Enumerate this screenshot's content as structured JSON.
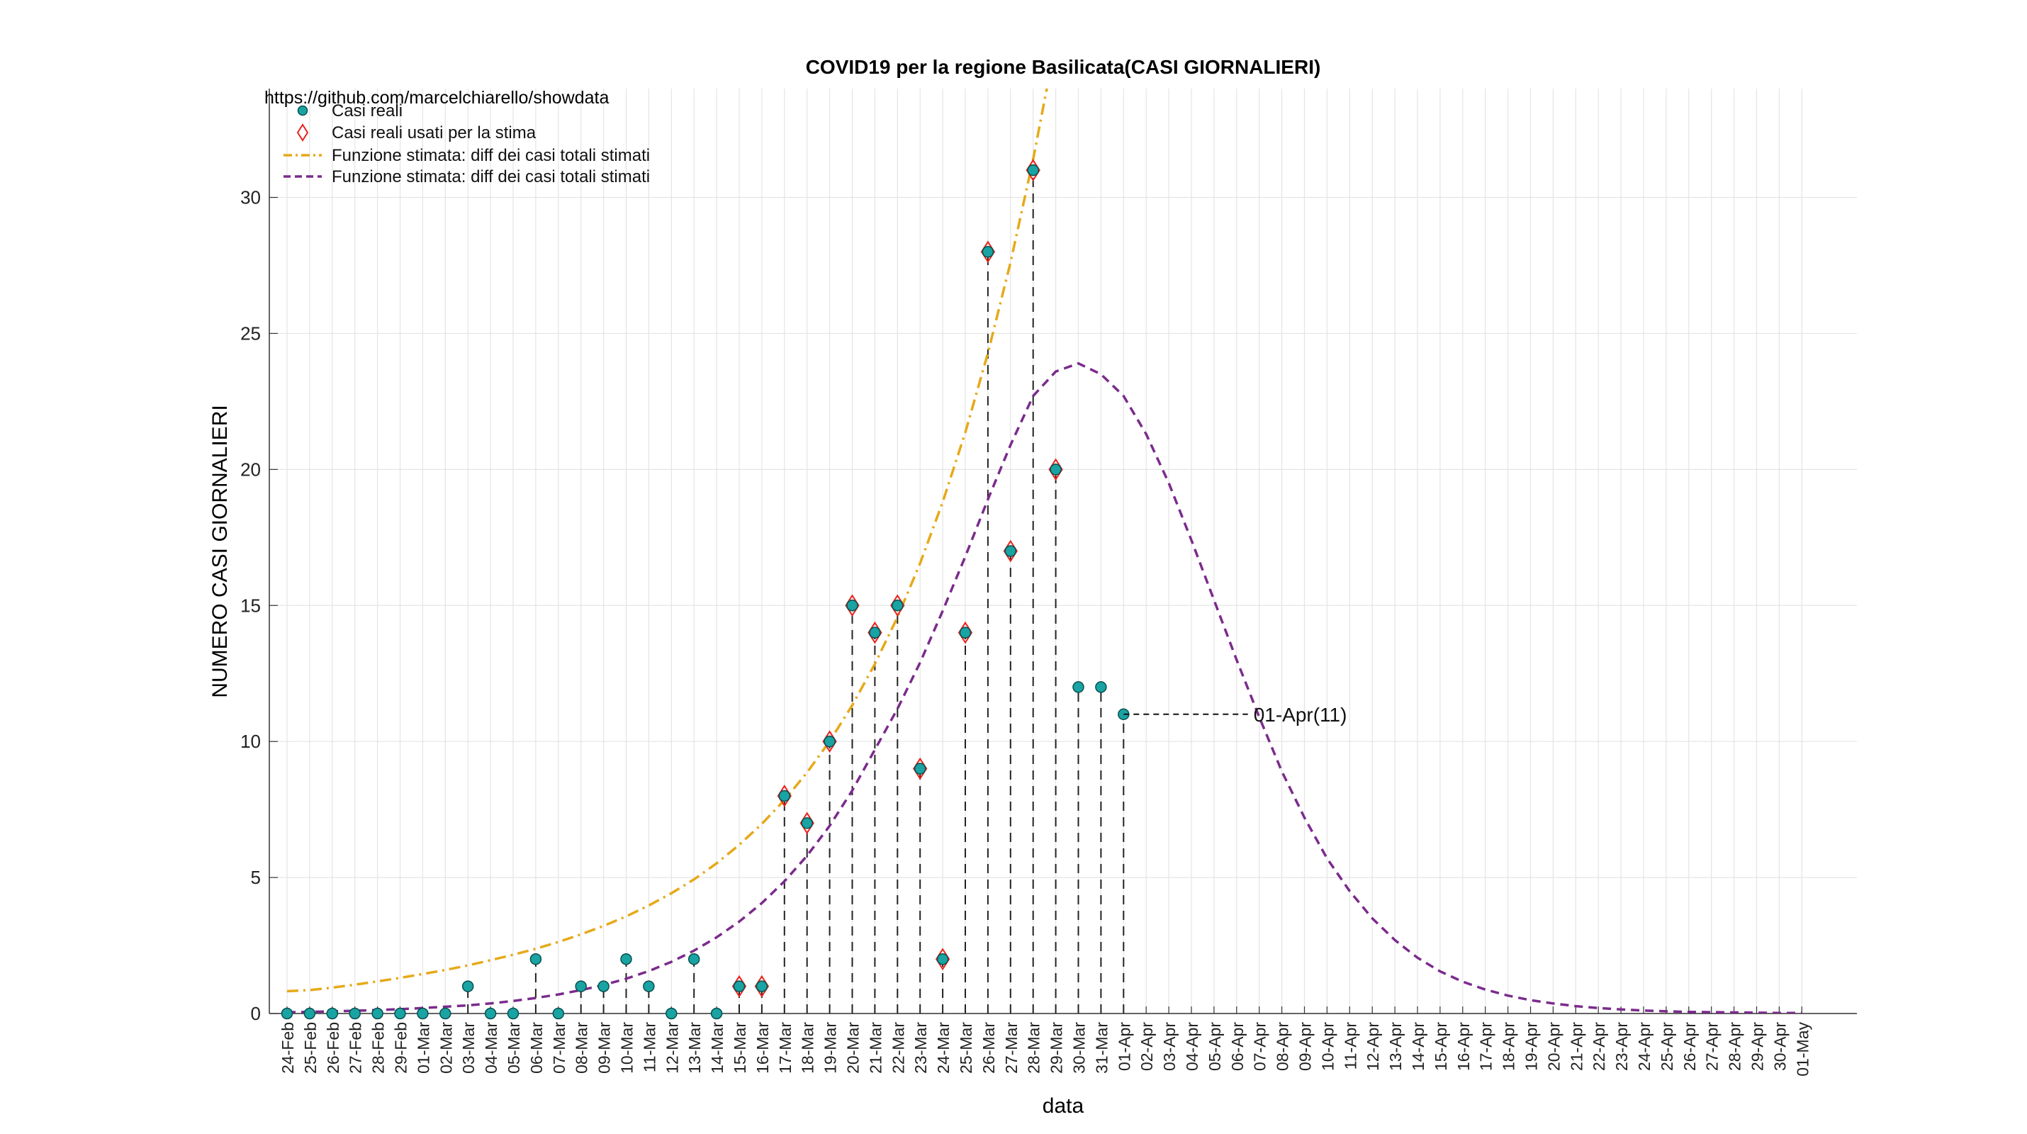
{
  "chart_data": {
    "type": "line",
    "title": "COVID19 per la regione Basilicata(CASI GIORNALIERI)",
    "subtitle": "https://github.com/marcelchiarello/showdata",
    "xlabel": "data",
    "ylabel": "NUMERO CASI GIORNALIERI",
    "ylim": [
      0,
      34
    ],
    "yticks": [
      0,
      5,
      10,
      15,
      20,
      25,
      30
    ],
    "grid": true,
    "legend_position": "top-left",
    "categories": [
      "24-Feb",
      "25-Feb",
      "26-Feb",
      "27-Feb",
      "28-Feb",
      "29-Feb",
      "01-Mar",
      "02-Mar",
      "03-Mar",
      "04-Mar",
      "05-Mar",
      "06-Mar",
      "07-Mar",
      "08-Mar",
      "09-Mar",
      "10-Mar",
      "11-Mar",
      "12-Mar",
      "13-Mar",
      "14-Mar",
      "15-Mar",
      "16-Mar",
      "17-Mar",
      "18-Mar",
      "19-Mar",
      "20-Mar",
      "21-Mar",
      "22-Mar",
      "23-Mar",
      "24-Mar",
      "25-Mar",
      "26-Mar",
      "27-Mar",
      "28-Mar",
      "29-Mar",
      "30-Mar",
      "31-Mar",
      "01-Apr",
      "02-Apr",
      "03-Apr",
      "04-Apr",
      "05-Apr",
      "06-Apr",
      "07-Apr",
      "08-Apr",
      "09-Apr",
      "10-Apr",
      "11-Apr",
      "12-Apr",
      "13-Apr",
      "14-Apr",
      "15-Apr",
      "16-Apr",
      "17-Apr",
      "18-Apr",
      "19-Apr",
      "20-Apr",
      "21-Apr",
      "22-Apr",
      "23-Apr",
      "24-Apr",
      "25-Apr",
      "26-Apr",
      "27-Apr",
      "28-Apr",
      "29-Apr",
      "30-Apr",
      "01-May"
    ],
    "series": [
      {
        "name": "Casi reali",
        "kind": "scatter-dot",
        "color": "#1aa3a3",
        "values": [
          0,
          0,
          0,
          0,
          0,
          0,
          0,
          0,
          1,
          0,
          0,
          2,
          0,
          1,
          1,
          2,
          1,
          0,
          2,
          0,
          1,
          1,
          8,
          7,
          10,
          15,
          14,
          15,
          9,
          2,
          14,
          28,
          17,
          31,
          20,
          12,
          12,
          11
        ]
      },
      {
        "name": "Casi reali usati per la stima",
        "kind": "scatter-diamond",
        "color": "#e8231c",
        "values": [
          null,
          null,
          null,
          null,
          null,
          null,
          null,
          null,
          null,
          null,
          null,
          null,
          null,
          null,
          null,
          null,
          null,
          null,
          null,
          null,
          1,
          1,
          8,
          7,
          10,
          15,
          14,
          15,
          9,
          2,
          14,
          28,
          17,
          31,
          20,
          null,
          null,
          null
        ]
      },
      {
        "name": "Funzione stimata: diff dei casi totali stimati",
        "kind": "line-dashdot",
        "color": "#e6a919",
        "values": [
          0.82,
          0.86,
          0.95,
          1.06,
          1.18,
          1.31,
          1.45,
          1.6,
          1.77,
          1.96,
          2.16,
          2.38,
          2.63,
          2.91,
          3.22,
          3.57,
          3.97,
          4.42,
          4.93,
          5.52,
          6.2,
          6.97,
          7.85,
          8.86,
          10.01,
          11.33,
          12.85,
          14.57,
          16.55,
          18.8,
          21.36,
          24.28,
          27.61,
          31.4,
          35.7,
          null,
          null,
          null,
          null,
          null,
          null,
          null,
          null,
          null,
          null,
          null,
          null,
          null,
          null,
          null,
          null,
          null,
          null,
          null,
          null,
          null,
          null,
          null,
          null,
          null,
          null,
          null,
          null,
          null,
          null,
          null,
          null,
          null
        ]
      },
      {
        "name": "Funzione stimata: diff dei casi totali stimati",
        "kind": "line-dashed",
        "color": "#7b2b8c",
        "values": [
          0.05,
          0.06,
          0.08,
          0.1,
          0.13,
          0.16,
          0.2,
          0.25,
          0.3,
          0.37,
          0.46,
          0.57,
          0.7,
          0.86,
          1.05,
          1.28,
          1.56,
          1.9,
          2.31,
          2.8,
          3.38,
          4.06,
          4.86,
          5.8,
          6.9,
          8.2,
          9.7,
          11.2,
          12.9,
          14.8,
          16.8,
          18.9,
          20.9,
          22.7,
          23.6,
          23.9,
          23.5,
          22.7,
          21.3,
          19.5,
          17.4,
          15.2,
          13.0,
          10.9,
          8.9,
          7.2,
          5.7,
          4.5,
          3.5,
          2.7,
          2.05,
          1.55,
          1.17,
          0.88,
          0.66,
          0.49,
          0.37,
          0.27,
          0.2,
          0.15,
          0.11,
          0.08,
          0.06,
          0.05,
          0.04,
          0.03,
          0.02,
          0.02
        ]
      }
    ],
    "annotations": [
      {
        "text": "01-Apr(11)",
        "x": "01-Apr",
        "y": 11,
        "target_x": "07-Apr"
      }
    ]
  }
}
